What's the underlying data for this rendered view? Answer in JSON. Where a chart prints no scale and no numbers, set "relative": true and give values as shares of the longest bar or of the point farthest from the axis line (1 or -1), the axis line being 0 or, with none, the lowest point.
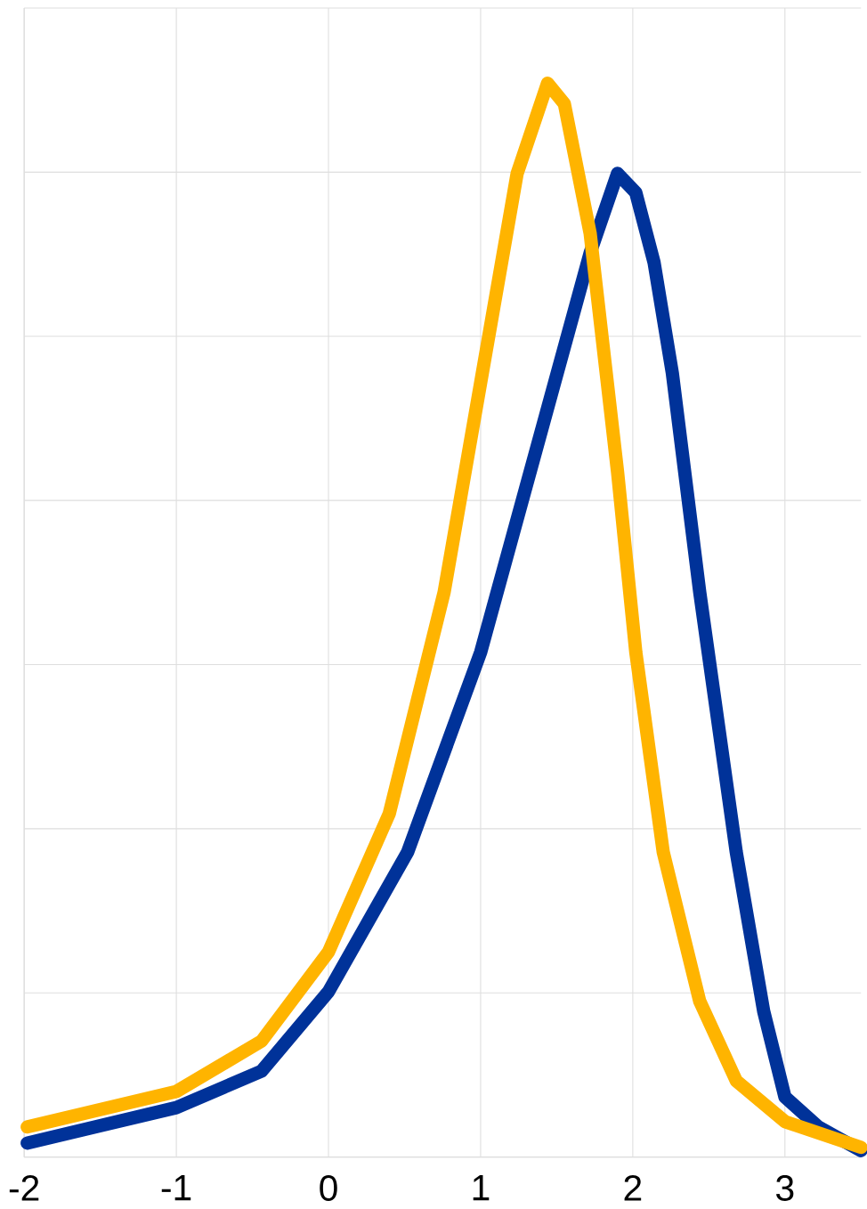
{
  "chart_data": {
    "type": "line",
    "relative": true,
    "xlim": [
      -2,
      3.5
    ],
    "xticks": [
      -2,
      -1,
      0,
      1,
      2,
      3
    ],
    "grid": true,
    "marker": "none",
    "line_style": "solid",
    "series": [
      {
        "color": "#003299",
        "x": [
          -1.98,
          -1.0,
          -0.44,
          0,
          0.52,
          1.0,
          1.36,
          1.72,
          1.9,
          2.02,
          2.14,
          2.26,
          2.44,
          2.68,
          2.86,
          3.0,
          3.22,
          3.5
        ],
        "values": [
          0.013,
          0.046,
          0.08,
          0.154,
          0.284,
          0.47,
          0.656,
          0.842,
          0.916,
          0.898,
          0.833,
          0.73,
          0.526,
          0.284,
          0.136,
          0.056,
          0.028,
          0.006
        ]
      },
      {
        "color": "#ffb400",
        "x": [
          -1.98,
          -1.0,
          -0.44,
          0,
          0.4,
          0.76,
          1.0,
          1.24,
          1.44,
          1.55,
          1.72,
          1.9,
          2.02,
          2.2,
          2.44,
          2.68,
          3.0,
          3.5
        ],
        "values": [
          0.028,
          0.061,
          0.108,
          0.191,
          0.32,
          0.526,
          0.721,
          0.916,
          1.0,
          0.981,
          0.86,
          0.638,
          0.47,
          0.284,
          0.145,
          0.071,
          0.033,
          0.009
        ]
      }
    ]
  }
}
